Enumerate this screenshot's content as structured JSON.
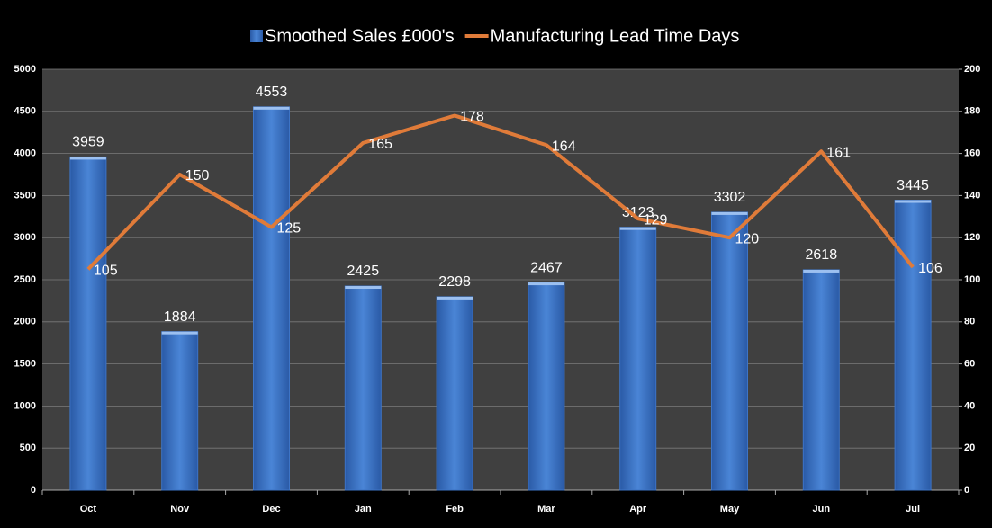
{
  "chart_data": {
    "type": "bar",
    "categories": [
      "Oct",
      "Nov",
      "Dec",
      "Jan",
      "Feb",
      "Mar",
      "Apr",
      "May",
      "Jun",
      "Jul"
    ],
    "series": [
      {
        "name": "Smoothed Sales £000's",
        "color": "#3d74c6",
        "values": [
          3959,
          1884,
          4553,
          2425,
          2298,
          2467,
          3123,
          3302,
          2618,
          3445
        ]
      },
      {
        "name": "Manufacturing Lead Time Days",
        "color": "#e07b39",
        "type": "line",
        "axis": "y2",
        "values": [
          105,
          150,
          125,
          165,
          178,
          164,
          129,
          120,
          161,
          106
        ]
      }
    ],
    "ylim": [
      0,
      5000
    ],
    "yticks": [
      0,
      500,
      1000,
      1500,
      2000,
      2500,
      3000,
      3500,
      4000,
      4500,
      5000
    ],
    "y2lim": [
      0,
      200
    ],
    "y2ticks": [
      0,
      20,
      40,
      60,
      80,
      100,
      120,
      140,
      160,
      180,
      200
    ],
    "grid": true,
    "legend": "top"
  }
}
